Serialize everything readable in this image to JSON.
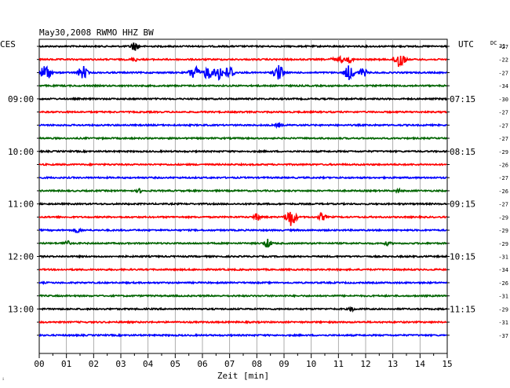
{
  "chart_data": {
    "type": "line",
    "title": "May30,2008   RWMO HHZ BW",
    "left_label": "CES",
    "right_label": "UTC",
    "dc_label": "DC",
    "dc_superscript": "31",
    "xlabel": "Zeit [min]",
    "x_ticks": [
      "00",
      "01",
      "02",
      "03",
      "04",
      "05",
      "06",
      "07",
      "08",
      "09",
      "10",
      "11",
      "12",
      "13",
      "14",
      "15"
    ],
    "xlim": [
      0,
      15
    ],
    "grid": true,
    "left_time_labels": [
      {
        "trace": 4,
        "text": "09:00"
      },
      {
        "trace": 8,
        "text": "10:00"
      },
      {
        "trace": 12,
        "text": "11:00"
      },
      {
        "trace": 16,
        "text": "12:00"
      },
      {
        "trace": 20,
        "text": "13:00"
      }
    ],
    "right_time_labels": [
      {
        "trace": 4,
        "text": "07:15"
      },
      {
        "trace": 8,
        "text": "08:15"
      },
      {
        "trace": 12,
        "text": "09:15"
      },
      {
        "trace": 16,
        "text": "10:15"
      },
      {
        "trace": 20,
        "text": "11:15"
      }
    ],
    "trace_colors": [
      "#000000",
      "#ff0000",
      "#0000ff",
      "#006400"
    ],
    "dc_offsets": [
      "-27",
      "-22",
      "-27",
      "-34",
      "-30",
      "-27",
      "-27",
      "-27",
      "-29",
      "-26",
      "-27",
      "-26",
      "-27",
      "-29",
      "-29",
      "-29",
      "-31",
      "-34",
      "-26",
      "-31",
      "-29",
      "-31",
      "-37"
    ],
    "events": [
      {
        "trace": 0,
        "x": 3.5,
        "amp": 6
      },
      {
        "trace": 1,
        "x": 3.5,
        "amp": 3
      },
      {
        "trace": 1,
        "x": 10.8,
        "amp": 3
      },
      {
        "trace": 1,
        "x": 11.1,
        "amp": 4
      },
      {
        "trace": 1,
        "x": 11.4,
        "amp": 4
      },
      {
        "trace": 1,
        "x": 13.25,
        "amp": 12
      },
      {
        "trace": 2,
        "x": 0.25,
        "amp": 11
      },
      {
        "trace": 2,
        "x": 1.6,
        "amp": 9
      },
      {
        "trace": 2,
        "x": 5.7,
        "amp": 10
      },
      {
        "trace": 2,
        "x": 6.2,
        "amp": 9
      },
      {
        "trace": 2,
        "x": 6.6,
        "amp": 10
      },
      {
        "trace": 2,
        "x": 7.0,
        "amp": 9
      },
      {
        "trace": 2,
        "x": 8.8,
        "amp": 10
      },
      {
        "trace": 2,
        "x": 11.4,
        "amp": 10
      },
      {
        "trace": 2,
        "x": 11.9,
        "amp": 6
      },
      {
        "trace": 6,
        "x": 8.8,
        "amp": 3
      },
      {
        "trace": 11,
        "x": 3.7,
        "amp": 3
      },
      {
        "trace": 11,
        "x": 13.2,
        "amp": 3
      },
      {
        "trace": 13,
        "x": 8.0,
        "amp": 5
      },
      {
        "trace": 13,
        "x": 9.25,
        "amp": 12
      },
      {
        "trace": 13,
        "x": 10.4,
        "amp": 5
      },
      {
        "trace": 14,
        "x": 1.4,
        "amp": 4
      },
      {
        "trace": 15,
        "x": 1.0,
        "amp": 4
      },
      {
        "trace": 15,
        "x": 8.4,
        "amp": 6
      },
      {
        "trace": 15,
        "x": 12.8,
        "amp": 3
      },
      {
        "trace": 20,
        "x": 11.5,
        "amp": 3
      }
    ]
  }
}
